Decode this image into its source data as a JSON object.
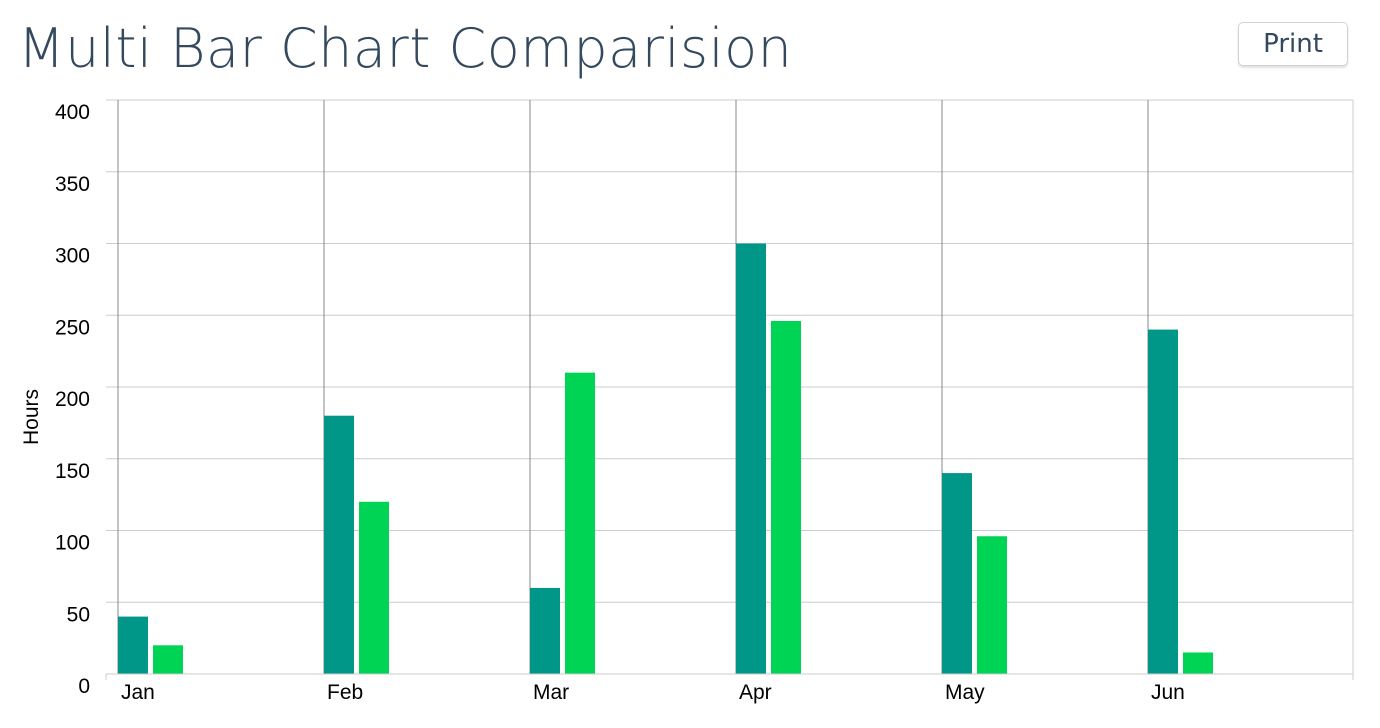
{
  "page": {
    "title": "Multi Bar Chart Comparision",
    "print_label": "Print"
  },
  "colors": {
    "series_1": "#009688",
    "series_2": "#00d454",
    "grid": "#cccccc",
    "title_text": "#34495e"
  },
  "chart_data": {
    "type": "bar",
    "title": "Multi Bar Chart Comparision",
    "xlabel": "",
    "ylabel": "Hours",
    "ylim": [
      0,
      400
    ],
    "yticks": [
      0,
      50,
      100,
      150,
      200,
      250,
      300,
      350,
      400
    ],
    "categories": [
      "Jan",
      "Feb",
      "Mar",
      "Apr",
      "May",
      "Jun"
    ],
    "series": [
      {
        "color": "#009688",
        "values": [
          40,
          180,
          60,
          300,
          140,
          240
        ]
      },
      {
        "color": "#00d454",
        "values": [
          20,
          120,
          210,
          246,
          96,
          15
        ]
      }
    ],
    "grid": true,
    "legend": "none"
  }
}
